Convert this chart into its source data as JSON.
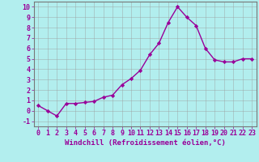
{
  "x": [
    0,
    1,
    2,
    3,
    4,
    5,
    6,
    7,
    8,
    9,
    10,
    11,
    12,
    13,
    14,
    15,
    16,
    17,
    18,
    19,
    20,
    21,
    22,
    23
  ],
  "y": [
    0.5,
    0.0,
    -0.5,
    0.7,
    0.7,
    0.8,
    0.9,
    1.3,
    1.5,
    2.5,
    3.1,
    3.9,
    5.4,
    6.5,
    8.5,
    10.0,
    9.0,
    8.2,
    6.0,
    4.9,
    4.7,
    4.7,
    5.0,
    5.0
  ],
  "line_color": "#990099",
  "marker": "D",
  "marker_size": 2.2,
  "linewidth": 1.0,
  "bg_color": "#b2eeee",
  "grid_color": "#999999",
  "xlabel": "Windchill (Refroidissement éolien,°C)",
  "xlabel_fontsize": 6.5,
  "xlabel_color": "#990099",
  "ylabel_ticks": [
    -1,
    0,
    1,
    2,
    3,
    4,
    5,
    6,
    7,
    8,
    9,
    10
  ],
  "xtick_labels": [
    "0",
    "1",
    "2",
    "3",
    "4",
    "5",
    "6",
    "7",
    "8",
    "9",
    "10",
    "11",
    "12",
    "13",
    "14",
    "15",
    "16",
    "17",
    "18",
    "19",
    "20",
    "21",
    "22",
    "23"
  ],
  "ylim": [
    -1.5,
    10.5
  ],
  "xlim": [
    -0.5,
    23.5
  ],
  "tick_fontsize": 6.0,
  "tick_color": "#990099"
}
